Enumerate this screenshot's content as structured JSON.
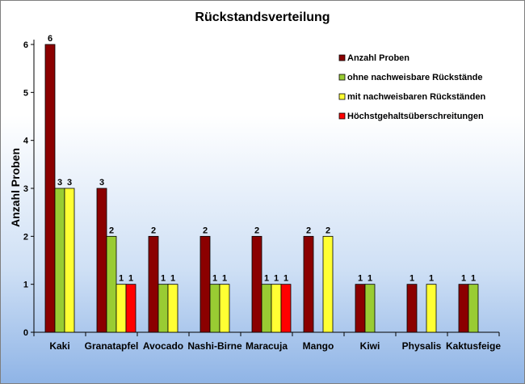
{
  "chart_data": {
    "type": "bar",
    "title": "Rückstandsverteilung",
    "xlabel": "",
    "ylabel": "Anzahl Proben",
    "ylim": [
      0,
      6
    ],
    "yticks": [
      "0",
      "1",
      "2",
      "3",
      "4",
      "5",
      "6"
    ],
    "grid": false,
    "legend_position": "top-right",
    "categories": [
      "Kaki",
      "Granatapfel",
      "Avocado",
      "Nashi-Birne",
      "Maracuja",
      "Mango",
      "Kiwi",
      "Physalis",
      "Kaktusfeige"
    ],
    "series": [
      {
        "name": "Anzahl Proben",
        "color": "#8b0000",
        "values": [
          6,
          3,
          2,
          2,
          2,
          2,
          1,
          1,
          1
        ]
      },
      {
        "name": "ohne nachweisbare Rückstände",
        "color": "#99cc33",
        "values": [
          3,
          2,
          1,
          1,
          1,
          null,
          1,
          null,
          1
        ]
      },
      {
        "name": "mit nachweisbaren Rückständen",
        "color": "#ffff33",
        "values": [
          3,
          1,
          1,
          1,
          1,
          2,
          null,
          1,
          null
        ]
      },
      {
        "name": "Höchstgehaltsüberschreitungen",
        "color": "#ff0000",
        "values": [
          null,
          1,
          null,
          null,
          1,
          null,
          null,
          null,
          null
        ]
      }
    ]
  }
}
